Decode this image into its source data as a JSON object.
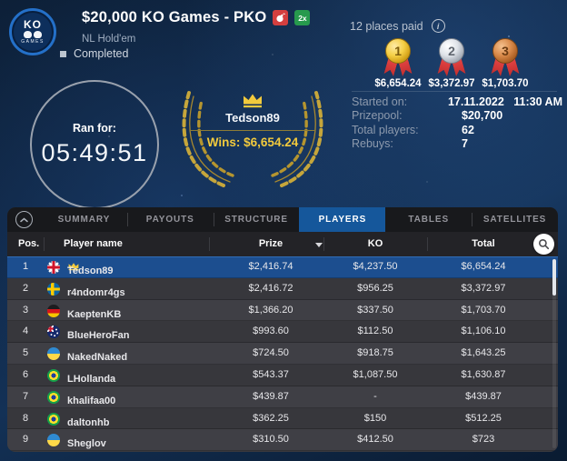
{
  "header": {
    "logo": {
      "line1": "KO",
      "line2": "GAMES"
    },
    "title": "$20,000 KO Games - PKO",
    "badges": [
      {
        "name": "bounty-badge",
        "color": "#d43f3f"
      },
      {
        "name": "reentry-badge",
        "label": "2x",
        "color": "#279a4d"
      }
    ],
    "game_type": "NL Hold'em",
    "status": "Completed"
  },
  "timer": {
    "label": "Ran for:",
    "value": "05:49:51"
  },
  "winner": {
    "name": "Tedson89",
    "wins": "Wins: $6,654.24"
  },
  "payouts": {
    "places_paid": "12 places paid",
    "podium": [
      {
        "place": "1",
        "amount": "$6,654.24"
      },
      {
        "place": "2",
        "amount": "$3,372.97"
      },
      {
        "place": "3",
        "amount": "$1,703.70"
      }
    ]
  },
  "stats": [
    {
      "label": "Started on:",
      "value": "17.11.2022   11:30 AM"
    },
    {
      "label": "Prizepool:",
      "value": "$20,700"
    },
    {
      "label": "Total players:",
      "value": "62"
    },
    {
      "label": "Rebuys:",
      "value": "7"
    }
  ],
  "tabs": {
    "items": [
      {
        "label": "SUMMARY",
        "active": false
      },
      {
        "label": "PAYOUTS",
        "active": false
      },
      {
        "label": "STRUCTURE",
        "active": false
      },
      {
        "label": "PLAYERS",
        "active": true
      },
      {
        "label": "TABLES",
        "active": false
      },
      {
        "label": "SATELLITES",
        "active": false
      }
    ]
  },
  "table": {
    "columns": {
      "pos": "Pos.",
      "player": "Player name",
      "prize": "Prize",
      "ko": "KO",
      "total": "Total"
    },
    "rows": [
      {
        "pos": "1",
        "flag": "gb",
        "name": "Tedson89",
        "crowned": true,
        "prize": "$2,416.74",
        "ko": "$4,237.50",
        "total": "$6,654.24",
        "selected": true
      },
      {
        "pos": "2",
        "flag": "se",
        "name": "r4ndomr4gs",
        "crowned": false,
        "prize": "$2,416.72",
        "ko": "$956.25",
        "total": "$3,372.97",
        "selected": false
      },
      {
        "pos": "3",
        "flag": "de",
        "name": "KaeptenKB",
        "crowned": false,
        "prize": "$1,366.20",
        "ko": "$337.50",
        "total": "$1,703.70",
        "selected": false
      },
      {
        "pos": "4",
        "flag": "au",
        "name": "BlueHeroFan",
        "crowned": false,
        "prize": "$993.60",
        "ko": "$112.50",
        "total": "$1,106.10",
        "selected": false
      },
      {
        "pos": "5",
        "flag": "ua",
        "name": "NakedNaked",
        "crowned": false,
        "prize": "$724.50",
        "ko": "$918.75",
        "total": "$1,643.25",
        "selected": false
      },
      {
        "pos": "6",
        "flag": "br",
        "name": "LHollanda",
        "crowned": false,
        "prize": "$543.37",
        "ko": "$1,087.50",
        "total": "$1,630.87",
        "selected": false
      },
      {
        "pos": "7",
        "flag": "br",
        "name": "khalifaa00",
        "crowned": false,
        "prize": "$439.87",
        "ko": "-",
        "total": "$439.87",
        "selected": false
      },
      {
        "pos": "8",
        "flag": "br",
        "name": "daltonhb",
        "crowned": false,
        "prize": "$362.25",
        "ko": "$150",
        "total": "$512.25",
        "selected": false
      },
      {
        "pos": "9",
        "flag": "ua",
        "name": "Sheglov",
        "crowned": false,
        "prize": "$310.50",
        "ko": "$412.50",
        "total": "$723",
        "selected": false
      }
    ]
  },
  "colors": {
    "accent_blue": "#15579b",
    "selected_row": "#1c4e8f",
    "gold": "#f2ca3d",
    "medal_gold": "#f5cf45",
    "medal_silver": "#dfe3e9",
    "medal_bronze": "#d98a4a",
    "ribbon_red": "#e04040",
    "background_navy": "#112a4b"
  }
}
